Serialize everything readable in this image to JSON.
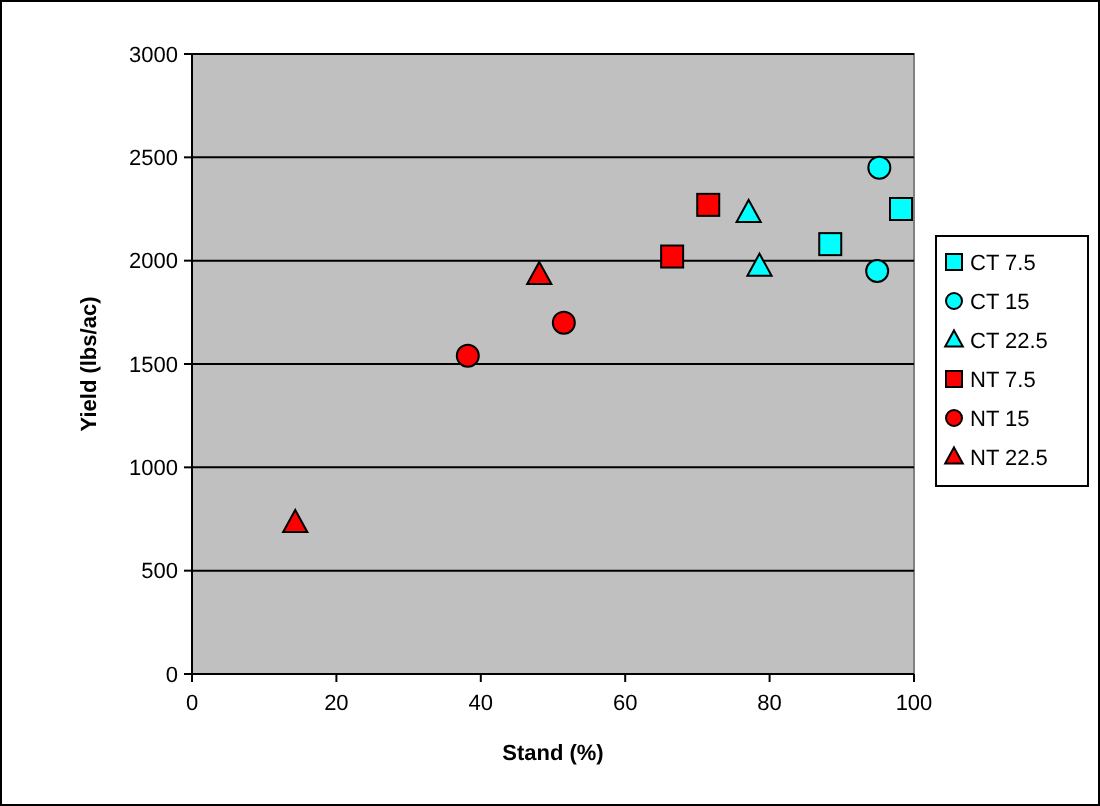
{
  "chart_data": {
    "type": "scatter",
    "xlabel": "Stand (%)",
    "ylabel": "Yield (lbs/ac)",
    "xlim": [
      0,
      100
    ],
    "xticks": [
      0,
      20,
      40,
      60,
      80,
      100
    ],
    "ylim": [
      0,
      3000
    ],
    "yticks": [
      0,
      500,
      1000,
      1500,
      2000,
      2500,
      3000
    ],
    "grid": "y",
    "legend": "right",
    "series": [
      {
        "name": "CT 7.5",
        "color": "#00ffff",
        "marker": "square",
        "x": [
          88.4,
          98.2
        ],
        "values": [
          2080,
          2250
        ]
      },
      {
        "name": "CT 15",
        "color": "#00ffff",
        "marker": "circle",
        "x": [
          95.2,
          94.9
        ],
        "values": [
          2450,
          1950
        ]
      },
      {
        "name": "CT 22.5",
        "color": "#00ffff",
        "marker": "triangle",
        "x": [
          77.1,
          78.6
        ],
        "values": [
          2230,
          1970
        ]
      },
      {
        "name": "NT 7.5",
        "color": "#ff0000",
        "marker": "square",
        "x": [
          66.5,
          71.5
        ],
        "values": [
          2020,
          2270
        ]
      },
      {
        "name": "NT 15",
        "color": "#ff0000",
        "marker": "circle",
        "x": [
          38.2,
          51.5
        ],
        "values": [
          1540,
          1700
        ]
      },
      {
        "name": "NT 22.5",
        "color": "#ff0000",
        "marker": "triangle",
        "x": [
          14.3,
          48.1
        ],
        "values": [
          730,
          1930
        ]
      }
    ]
  }
}
